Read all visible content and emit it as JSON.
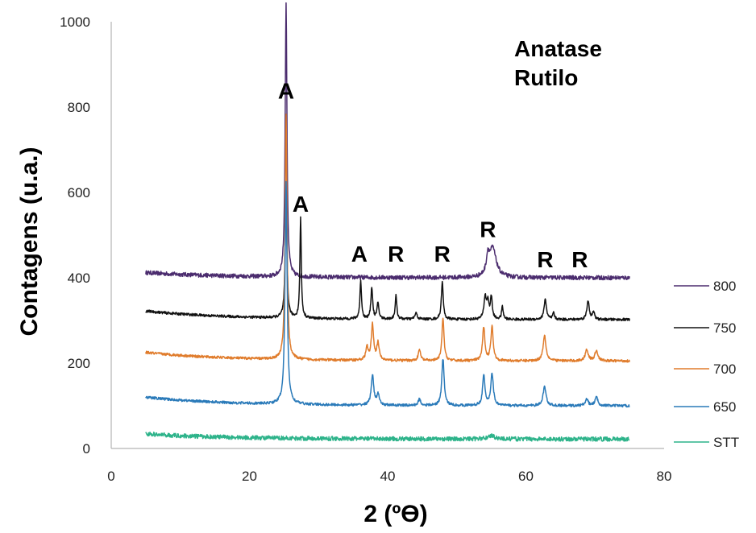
{
  "chart_data": {
    "type": "line",
    "xlabel": "2 (ºϴ)",
    "ylabel": "Contagens (u.a.)",
    "xlim": [
      0,
      80
    ],
    "ylim": [
      0,
      1000
    ],
    "x_ticks": [
      "0",
      "20",
      "40",
      "60",
      "80"
    ],
    "y_ticks": [
      "0",
      "200",
      "400",
      "600",
      "800",
      "1000"
    ],
    "grid": false,
    "legend_position": "right",
    "phase_labels": [
      "Anatase",
      "Rutilo"
    ],
    "annotations": [
      {
        "text": "A",
        "x": 25.3,
        "y": 820
      },
      {
        "text": "A",
        "x": 27.4,
        "y": 555
      },
      {
        "text": "A",
        "x": 35.9,
        "y": 438
      },
      {
        "text": "R",
        "x": 41.2,
        "y": 438
      },
      {
        "text": "R",
        "x": 47.9,
        "y": 438
      },
      {
        "text": "R",
        "x": 54.5,
        "y": 495
      },
      {
        "text": "R",
        "x": 62.8,
        "y": 425
      },
      {
        "text": "R",
        "x": 67.8,
        "y": 425
      }
    ],
    "x_range": [
      5,
      75
    ],
    "series": [
      {
        "name": "800",
        "color": "#4b2c6e",
        "baseline": 400,
        "start_offset": 12,
        "noise": 5,
        "peaks": [
          [
            25.3,
            640,
            0.15
          ],
          [
            54.5,
            40,
            0.25
          ],
          [
            55.2,
            68,
            0.6
          ]
        ]
      },
      {
        "name": "750",
        "color": "#111111",
        "baseline": 302,
        "start_offset": 20,
        "noise": 3,
        "peaks": [
          [
            25.3,
            300,
            0.15
          ],
          [
            27.4,
            235,
            0.12
          ],
          [
            36.1,
            88,
            0.14
          ],
          [
            37.7,
            75,
            0.15
          ],
          [
            38.6,
            38,
            0.15
          ],
          [
            41.2,
            55,
            0.14
          ],
          [
            44.1,
            14,
            0.2
          ],
          [
            47.9,
            88,
            0.16
          ],
          [
            54.1,
            50,
            0.2
          ],
          [
            54.5,
            38,
            0.2
          ],
          [
            55.0,
            50,
            0.16
          ],
          [
            56.6,
            30,
            0.14
          ],
          [
            62.8,
            48,
            0.2
          ],
          [
            64.0,
            15,
            0.15
          ],
          [
            69.0,
            45,
            0.2
          ],
          [
            69.8,
            18,
            0.15
          ]
        ]
      },
      {
        "name": "700",
        "color": "#e07c2c",
        "baseline": 205,
        "start_offset": 20,
        "noise": 3,
        "peaks": [
          [
            25.3,
            575,
            0.16
          ],
          [
            37.0,
            30,
            0.2
          ],
          [
            37.8,
            83,
            0.2
          ],
          [
            38.6,
            40,
            0.2
          ],
          [
            48.0,
            100,
            0.18
          ],
          [
            53.9,
            78,
            0.2
          ],
          [
            55.1,
            80,
            0.2
          ],
          [
            62.7,
            60,
            0.25
          ],
          [
            68.8,
            27,
            0.25
          ],
          [
            70.2,
            25,
            0.25
          ],
          [
            44.6,
            25,
            0.2
          ]
        ]
      },
      {
        "name": "650",
        "color": "#2a7ab9",
        "baseline": 100,
        "start_offset": 20,
        "noise": 3,
        "peaks": [
          [
            25.3,
            520,
            0.18
          ],
          [
            37.8,
            70,
            0.22
          ],
          [
            38.6,
            25,
            0.2
          ],
          [
            44.6,
            15,
            0.2
          ],
          [
            48.0,
            110,
            0.2
          ],
          [
            53.9,
            70,
            0.2
          ],
          [
            55.1,
            75,
            0.22
          ],
          [
            62.7,
            45,
            0.25
          ],
          [
            68.8,
            15,
            0.25
          ],
          [
            70.2,
            20,
            0.25
          ]
        ]
      },
      {
        "name": "STT",
        "color": "#2db38a",
        "baseline": 22,
        "start_offset": 12,
        "noise": 5,
        "peaks": [
          [
            55.0,
            8,
            0.6
          ]
        ]
      }
    ]
  }
}
